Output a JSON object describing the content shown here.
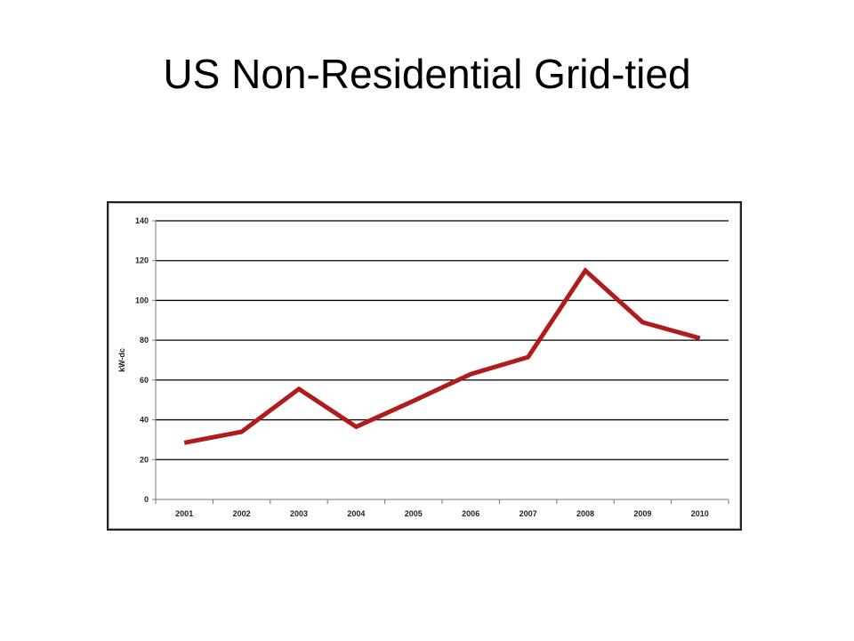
{
  "slide": {
    "title": "US Non-Residential Grid-tied"
  },
  "chart_data": {
    "type": "line",
    "title": "",
    "xlabel": "",
    "ylabel": "kW-dc",
    "categories": [
      "2001",
      "2002",
      "2003",
      "2004",
      "2005",
      "2006",
      "2007",
      "2008",
      "2009",
      "2010"
    ],
    "series": [
      {
        "name": "",
        "values": [
          28.5,
          34,
          55.5,
          36.5,
          49.5,
          63,
          71.5,
          115,
          89,
          81
        ],
        "color": "#b01b1b"
      }
    ],
    "ylim": [
      0,
      140
    ],
    "yticks": [
      0,
      20,
      40,
      60,
      80,
      100,
      120,
      140
    ],
    "grid": true,
    "legend": "none"
  }
}
